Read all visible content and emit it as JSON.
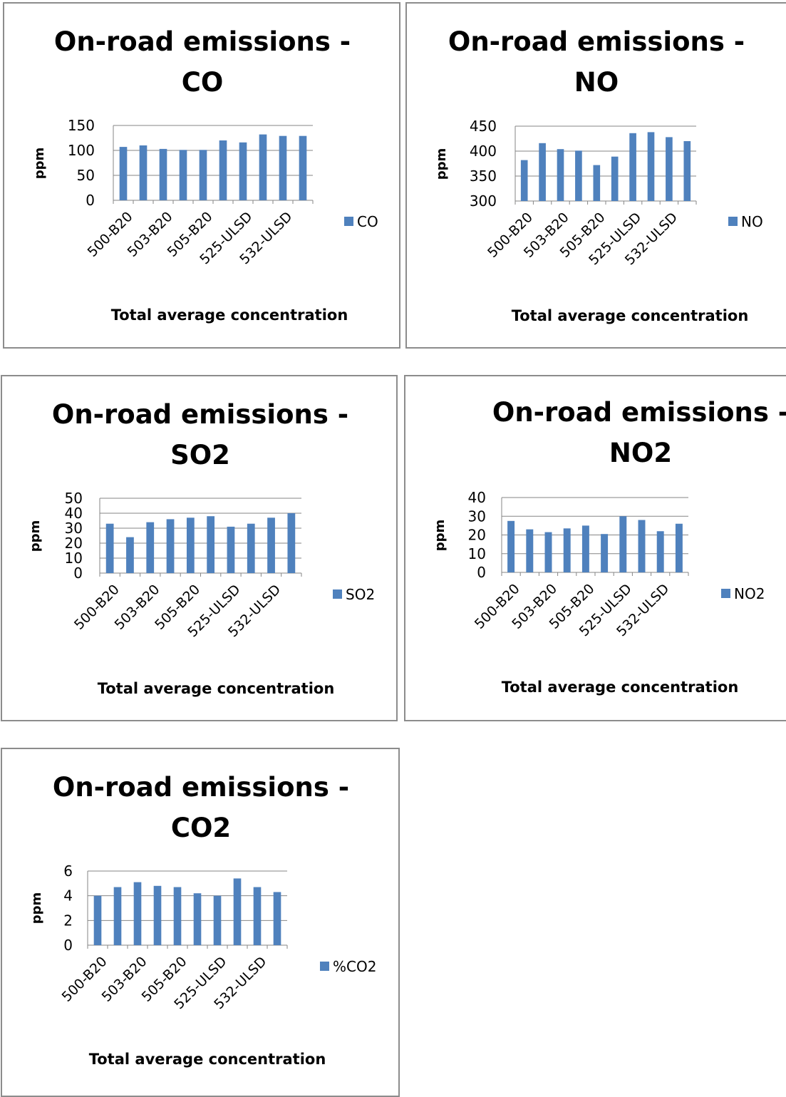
{
  "chart_data": [
    {
      "type": "bar",
      "title": [
        "On-road emissions -",
        "CO"
      ],
      "xlabel": "Total average concentration",
      "ylabel": "ppm",
      "ylim": [
        0,
        150
      ],
      "yticks": [
        0,
        50,
        100,
        150
      ],
      "categories": [
        "500-B20",
        "",
        "503-B20",
        "",
        "505-B20",
        "",
        "525-ULSD",
        "",
        "532-ULSD",
        ""
      ],
      "series": [
        {
          "name": "CO",
          "values": [
            107,
            110,
            103,
            101,
            101,
            120,
            116,
            132,
            129,
            129
          ]
        }
      ],
      "legend": "right",
      "grid": true,
      "color": "#4f81bd"
    },
    {
      "type": "bar",
      "title": [
        "On-road emissions -",
        "NO"
      ],
      "xlabel": "Total average concentration",
      "ylabel": "ppm",
      "ylim": [
        300,
        450
      ],
      "yticks": [
        300,
        350,
        400,
        450
      ],
      "categories": [
        "500-B20",
        "",
        "503-B20",
        "",
        "505-B20",
        "",
        "525-ULSD",
        "",
        "532-ULSD",
        ""
      ],
      "series": [
        {
          "name": "NO",
          "values": [
            382,
            416,
            404,
            401,
            372,
            389,
            436,
            438,
            428,
            420
          ]
        }
      ],
      "legend": "right",
      "grid": true,
      "color": "#4f81bd"
    },
    {
      "type": "bar",
      "title": [
        "On-road emissions -",
        "SO2"
      ],
      "xlabel": "Total average concentration",
      "ylabel": "ppm",
      "ylim": [
        0,
        50
      ],
      "yticks": [
        0,
        10,
        20,
        30,
        40,
        50
      ],
      "categories": [
        "500-B20",
        "",
        "503-B20",
        "",
        "505-B20",
        "",
        "525-ULSD",
        "",
        "532-ULSD",
        ""
      ],
      "series": [
        {
          "name": "SO2",
          "values": [
            33,
            24,
            34,
            36,
            37,
            38,
            31,
            33,
            37,
            40
          ]
        }
      ],
      "legend": "right",
      "grid": true,
      "color": "#4f81bd"
    },
    {
      "type": "bar",
      "title": [
        "On-road emissions -",
        "NO2"
      ],
      "xlabel": "Total average concentration",
      "ylabel": "ppm",
      "ylim": [
        0,
        40
      ],
      "yticks": [
        0,
        10,
        20,
        30,
        40
      ],
      "categories": [
        "500-B20",
        "",
        "503-B20",
        "",
        "505-B20",
        "",
        "525-ULSD",
        "",
        "532-ULSD",
        ""
      ],
      "series": [
        {
          "name": "NO2",
          "values": [
            27.5,
            23,
            21.5,
            23.5,
            25,
            20.5,
            30,
            28,
            22,
            26
          ]
        }
      ],
      "legend": "right",
      "grid": true,
      "color": "#4f81bd"
    },
    {
      "type": "bar",
      "title": [
        "On-road emissions -",
        "CO2"
      ],
      "xlabel": "Total average concentration",
      "ylabel": "ppm",
      "ylim": [
        0,
        6
      ],
      "yticks": [
        0,
        2,
        4,
        6
      ],
      "categories": [
        "500-B20",
        "",
        "503-B20",
        "",
        "505-B20",
        "",
        "525-ULSD",
        "",
        "532-ULSD",
        ""
      ],
      "series": [
        {
          "name": "%CO2",
          "values": [
            4.0,
            4.7,
            5.1,
            4.8,
            4.7,
            4.2,
            4.0,
            5.4,
            4.7,
            4.3
          ]
        }
      ],
      "legend": "right",
      "grid": true,
      "color": "#4f81bd"
    }
  ]
}
